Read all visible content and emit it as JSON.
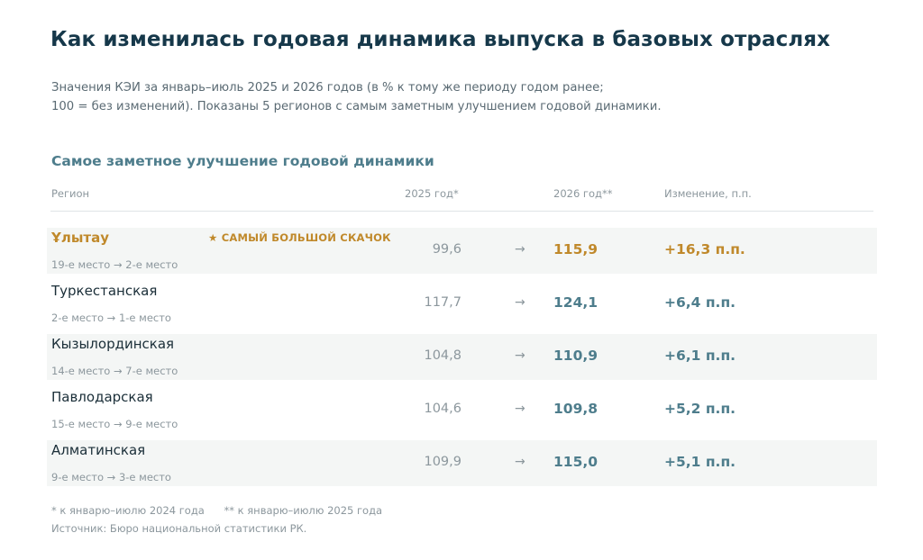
{
  "header": {
    "title": "Как изменилась годовая динамика выпуска в базовых отраслях",
    "subtitle_line1": "Значения КЭИ за январь–июль 2025 и 2026 годов (в % к тому же периоду годом ранее;",
    "subtitle_line2": "100 = без изменений). Показаны 5 регионов с самым заметным улучшением годовой динамики."
  },
  "table": {
    "section_title": "Самое заметное улучшение годовой динамики",
    "columns": {
      "region": "Регион",
      "year_2025": "2025 год*",
      "year_2026": "2026 год**",
      "change": "Изменение, п.п."
    },
    "arrow_glyph": "→",
    "rows": [
      {
        "region": "Ұлытау",
        "badge": "★ САМЫЙ БОЛЬШОЙ СКАЧОК",
        "rank": "19-е место → 2-е место",
        "value_2025": "99,6",
        "value_2026": "115,9",
        "change": "+16,3 п.п.",
        "highlight": true,
        "shaded": true
      },
      {
        "region": "Туркестанская",
        "badge": "",
        "rank": "2-е место → 1-е место",
        "value_2025": "117,7",
        "value_2026": "124,1",
        "change": "+6,4 п.п.",
        "highlight": false,
        "shaded": false
      },
      {
        "region": "Кызылординская",
        "badge": "",
        "rank": "14-е место → 7-е место",
        "value_2025": "104,8",
        "value_2026": "110,9",
        "change": "+6,1 п.п.",
        "highlight": false,
        "shaded": true
      },
      {
        "region": "Павлодарская",
        "badge": "",
        "rank": "15-е место → 9-е место",
        "value_2025": "104,6",
        "value_2026": "109,8",
        "change": "+5,2 п.п.",
        "highlight": false,
        "shaded": false
      },
      {
        "region": "Алматинская",
        "badge": "",
        "rank": "9-е место → 3-е место",
        "value_2025": "109,9",
        "value_2026": "115,0",
        "change": "+5,1 п.п.",
        "highlight": false,
        "shaded": true
      }
    ]
  },
  "footer": {
    "note_2025": "* к январю–июлю 2024 года",
    "note_2026": "** к январю–июлю 2025 года",
    "source": "Источник: Бюро национальной статистики РК."
  },
  "colors": {
    "title": "#16384a",
    "accent": "#4e7d8c",
    "highlight": "#c0892b",
    "muted": "#8c979d",
    "row_shade": "#f4f6f5"
  }
}
